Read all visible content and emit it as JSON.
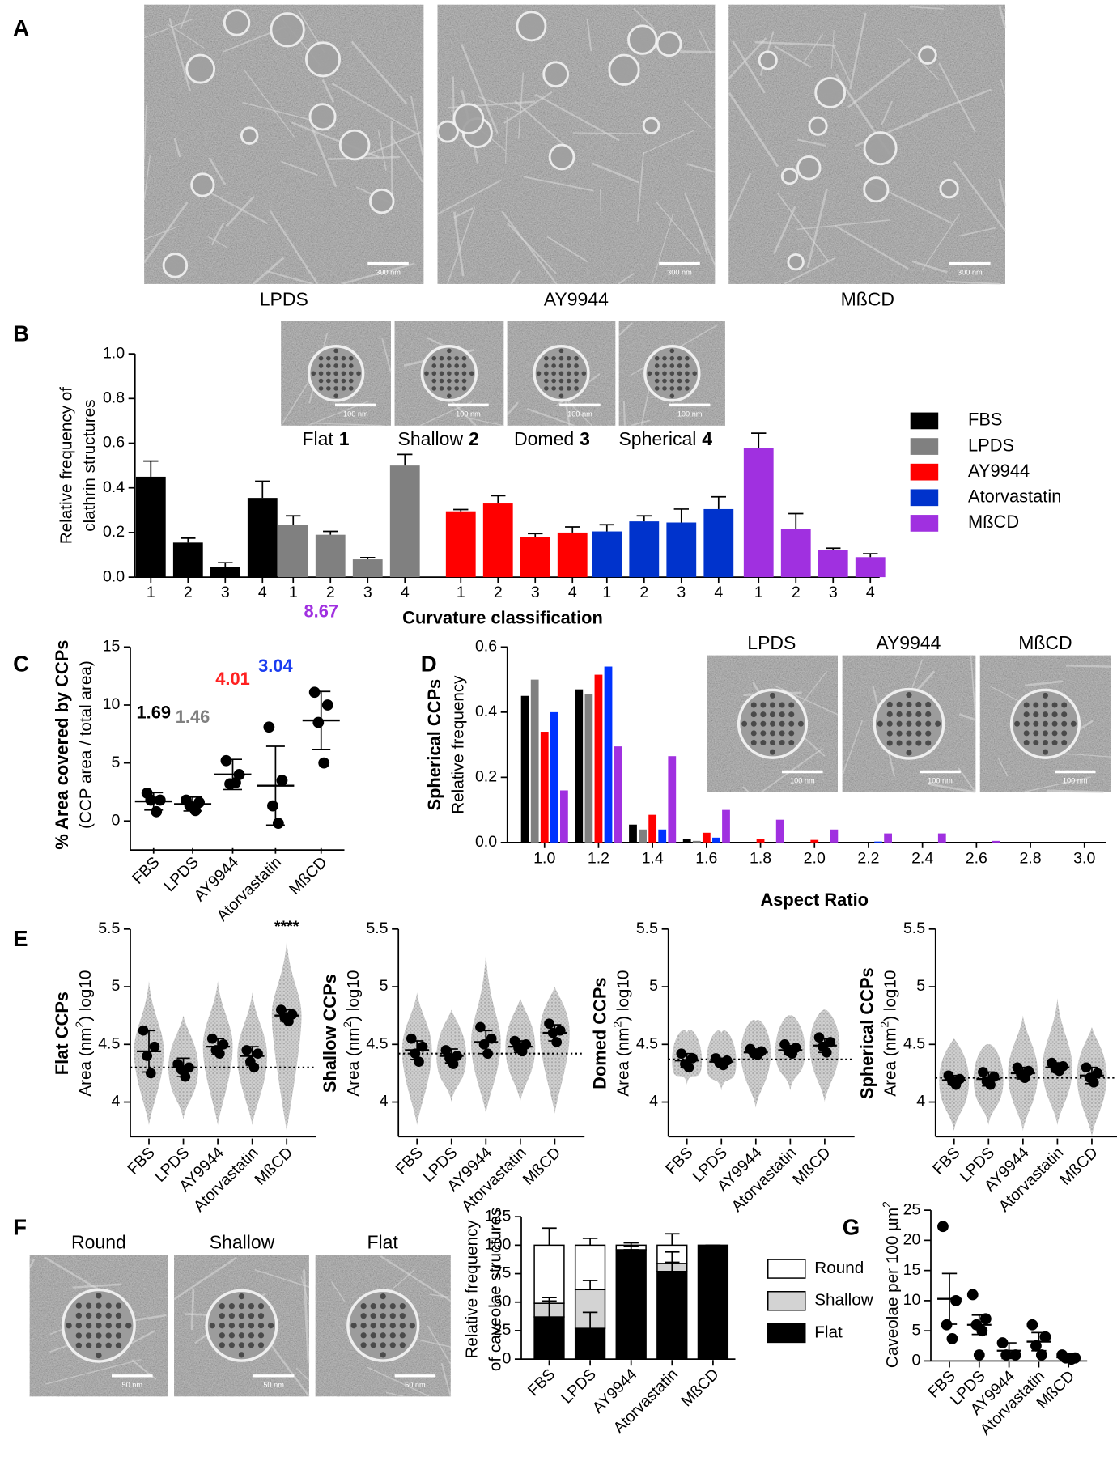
{
  "panel_labels": [
    "A",
    "B",
    "C",
    "D",
    "E",
    "F",
    "G"
  ],
  "panel_a_images": [
    {
      "label": "LPDS",
      "scale_bar": "300 nm"
    },
    {
      "label": "AY9944",
      "scale_bar": "300 nm"
    },
    {
      "label": "MßCD",
      "scale_bar": "300 nm"
    }
  ],
  "panel_b_insets": [
    {
      "label": "Flat",
      "number": "1",
      "scale_bar": "100 nm"
    },
    {
      "label": "Shallow",
      "number": "2",
      "scale_bar": "100 nm"
    },
    {
      "label": "Domed",
      "number": "3",
      "scale_bar": "100 nm"
    },
    {
      "label": "Spherical",
      "number": "4",
      "scale_bar": "100 nm"
    }
  ],
  "panel_d_insets": [
    {
      "label": "LPDS",
      "scale_bar": "100 nm"
    },
    {
      "label": "AY9944",
      "scale_bar": "100 nm"
    },
    {
      "label": "MßCD",
      "scale_bar": "100 nm"
    }
  ],
  "panel_f_insets": [
    {
      "label": "Round",
      "scale_bar": "50 nm"
    },
    {
      "label": "Shallow",
      "scale_bar": "50 nm"
    },
    {
      "label": "Flat",
      "scale_bar": "50 nm"
    }
  ],
  "chart_data": [
    {
      "type": "grouped_bar",
      "y_label_lines": [
        "Relative frequency of",
        "clathrin structures"
      ],
      "x_label": "Curvature classification",
      "categories": [
        "1",
        "2",
        "3",
        "4"
      ],
      "ylim": [
        0,
        1
      ],
      "yticks": [
        {
          "value": 0,
          "label": "0.0"
        },
        0.2,
        0.4,
        0.6,
        0.8,
        {
          "value": 1,
          "label": "1.0"
        }
      ],
      "legend": "right",
      "series": [
        {
          "name": "FBS",
          "color": "#000000",
          "values": [
            0.45,
            0.155,
            0.045,
            0.355
          ],
          "errors": [
            0.07,
            0.02,
            0.02,
            0.075
          ]
        },
        {
          "name": "LPDS",
          "color": "#808080",
          "values": [
            0.235,
            0.19,
            0.08,
            0.5
          ],
          "errors": [
            0.04,
            0.015,
            0.008,
            0.05
          ]
        },
        {
          "name": "AY9944",
          "color": "#ff0000",
          "values": [
            0.295,
            0.33,
            0.18,
            0.2
          ],
          "errors": [
            0.008,
            0.035,
            0.015,
            0.025
          ]
        },
        {
          "name": "Atorvastatin",
          "color": "#0033cc",
          "values": [
            0.205,
            0.25,
            0.245,
            0.305
          ],
          "errors": [
            0.03,
            0.025,
            0.06,
            0.055
          ]
        },
        {
          "name": "MßCD",
          "color": "#a030e0",
          "values": [
            0.58,
            0.215,
            0.12,
            0.09
          ],
          "errors": [
            0.065,
            0.07,
            0.01,
            0.015
          ]
        }
      ]
    },
    {
      "type": "dot",
      "y_title": "% Area covered by CCPs",
      "y_label_lines": [
        "(CCP area / total area)"
      ],
      "categories": [
        "FBS",
        "LPDS",
        "AY9944",
        "Atorvastatin",
        "MßCD"
      ],
      "ylim": [
        -2.5,
        15
      ],
      "yticks": [
        0,
        5,
        10,
        15
      ],
      "groups": [
        {
          "points": [
            2.4,
            1.8,
            1.8,
            0.8
          ],
          "mean": 1.69,
          "sd": 0.75,
          "mean_color": "#000000"
        },
        {
          "points": [
            1.8,
            1.6,
            1.3,
            0.9
          ],
          "mean": 1.46,
          "sd": 0.6,
          "mean_color": "#808080"
        },
        {
          "points": [
            5.2,
            4.0,
            3.2,
            3.3
          ],
          "mean": 4.01,
          "sd": 1.3,
          "mean_color": "#ff2020"
        },
        {
          "points": [
            8.1,
            3.5,
            1.3,
            -0.2
          ],
          "mean": 3.04,
          "sd": 3.4,
          "mean_color": "#1a3cf0"
        },
        {
          "points": [
            11.1,
            10.0,
            8.5,
            5.0
          ],
          "mean": 8.67,
          "sd": 2.5,
          "mean_color": "#a030e0"
        }
      ]
    },
    {
      "type": "grouped_bar",
      "y_title": "Spherical CCPs",
      "y_label_lines": [
        "Relative frequency"
      ],
      "x_label": "Aspect Ratio",
      "categories": [
        "1.0",
        "1.2",
        "1.4",
        "1.6",
        "1.8",
        "2.0",
        "2.2",
        "2.4",
        "2.6",
        "2.8",
        "3.0"
      ],
      "ylim": [
        0,
        0.6
      ],
      "yticks": [
        {
          "value": 0,
          "label": "0.0"
        },
        0.2,
        0.4,
        0.6
      ],
      "series": [
        {
          "color": "#000000",
          "values": [
            0.45,
            0.47,
            0.055,
            0.01,
            0,
            0,
            0,
            0,
            0,
            0,
            0
          ]
        },
        {
          "color": "#808080",
          "values": [
            0.5,
            0.455,
            0.04,
            0.005,
            0,
            0,
            0,
            0,
            0,
            0,
            0
          ]
        },
        {
          "color": "#ff0000",
          "values": [
            0.34,
            0.515,
            0.085,
            0.03,
            0.012,
            0.008,
            0,
            0,
            0,
            0,
            0
          ]
        },
        {
          "color": "#0033ff",
          "values": [
            0.4,
            0.54,
            0.04,
            0.015,
            0,
            0,
            0.003,
            0,
            0,
            0,
            0
          ]
        },
        {
          "color": "#a030e0",
          "values": [
            0.16,
            0.295,
            0.265,
            0.1,
            0.07,
            0.04,
            0.028,
            0.028,
            0.005,
            0,
            0
          ]
        }
      ]
    },
    {
      "type": "swarm",
      "y_title": "Flat CCPs",
      "y_label_parts": [
        "Area (nm",
        "2",
        ") log10"
      ],
      "categories": [
        "FBS",
        "LPDS",
        "AY9944",
        "Atorvastatin",
        "MßCD"
      ],
      "ylim": [
        3.7,
        5.5
      ],
      "yticks": [
        4,
        4.5,
        5,
        5.5
      ],
      "reference": 4.3,
      "annotations": [
        {
          "text": "****",
          "category": "MßCD"
        }
      ],
      "groups": [
        {
          "range": [
            3.8,
            5.05
          ],
          "replicates": [
            4.62,
            4.48,
            4.4,
            4.25
          ],
          "mean": 4.44,
          "sd": 0.18
        },
        {
          "range": [
            3.85,
            4.75
          ],
          "replicates": [
            4.33,
            4.3,
            4.28,
            4.22
          ],
          "mean": 4.3,
          "sd": 0.08
        },
        {
          "range": [
            3.8,
            5.05
          ],
          "replicates": [
            4.55,
            4.5,
            4.45,
            4.42
          ],
          "mean": 4.48,
          "sd": 0.07
        },
        {
          "range": [
            3.8,
            4.95
          ],
          "replicates": [
            4.45,
            4.42,
            4.35,
            4.3
          ],
          "mean": 4.4,
          "sd": 0.08
        },
        {
          "range": [
            3.75,
            5.4
          ],
          "replicates": [
            4.8,
            4.76,
            4.73,
            4.7
          ],
          "mean": 4.75,
          "sd": 0.05
        }
      ]
    },
    {
      "type": "swarm",
      "y_title": "Shallow CCPs",
      "y_label_parts": [
        "Area (nm",
        "2",
        ") log10"
      ],
      "categories": [
        "FBS",
        "LPDS",
        "AY9944",
        "Atorvastatin",
        "MßCD"
      ],
      "ylim": [
        3.7,
        5.5
      ],
      "yticks": [
        4,
        4.5,
        5,
        5.5
      ],
      "reference": 4.42,
      "groups": [
        {
          "range": [
            3.8,
            4.95
          ],
          "replicates": [
            4.55,
            4.48,
            4.42,
            4.35
          ],
          "mean": 4.45,
          "sd": 0.08
        },
        {
          "range": [
            4.0,
            4.8
          ],
          "replicates": [
            4.45,
            4.4,
            4.38,
            4.33
          ],
          "mean": 4.4,
          "sd": 0.06
        },
        {
          "range": [
            3.9,
            5.3
          ],
          "replicates": [
            4.65,
            4.55,
            4.5,
            4.42
          ],
          "mean": 4.52,
          "sd": 0.1
        },
        {
          "range": [
            4.0,
            4.9
          ],
          "replicates": [
            4.53,
            4.5,
            4.47,
            4.44
          ],
          "mean": 4.48,
          "sd": 0.05
        },
        {
          "range": [
            3.9,
            5.0
          ],
          "replicates": [
            4.68,
            4.62,
            4.6,
            4.52
          ],
          "mean": 4.6,
          "sd": 0.07
        }
      ]
    },
    {
      "type": "swarm",
      "y_title": "Domed CCPs",
      "y_label_parts": [
        "Area (nm",
        "2",
        ") log10"
      ],
      "categories": [
        "FBS",
        "LPDS",
        "AY9944",
        "Atorvastatin",
        "MßCD"
      ],
      "ylim": [
        3.7,
        5.5
      ],
      "yticks": [
        4,
        4.5,
        5,
        5.5
      ],
      "reference": 4.37,
      "groups": [
        {
          "range": [
            4.15,
            4.6
          ],
          "replicates": [
            4.42,
            4.38,
            4.33,
            4.3
          ],
          "mean": 4.36,
          "sd": 0.06
        },
        {
          "range": [
            4.1,
            4.6
          ],
          "replicates": [
            4.38,
            4.36,
            4.34,
            4.32
          ],
          "mean": 4.35,
          "sd": 0.03
        },
        {
          "range": [
            3.95,
            4.7
          ],
          "replicates": [
            4.46,
            4.44,
            4.42,
            4.41
          ],
          "mean": 4.43,
          "sd": 0.03
        },
        {
          "range": [
            4.1,
            4.75
          ],
          "replicates": [
            4.5,
            4.47,
            4.44,
            4.42
          ],
          "mean": 4.45,
          "sd": 0.04
        },
        {
          "range": [
            4.0,
            4.8
          ],
          "replicates": [
            4.56,
            4.52,
            4.48,
            4.43
          ],
          "mean": 4.49,
          "sd": 0.06
        }
      ]
    },
    {
      "type": "swarm",
      "y_title": "Spherical CCPs",
      "y_label_parts": [
        "Area (nm",
        "2",
        ") log10"
      ],
      "categories": [
        "FBS",
        "LPDS",
        "AY9944",
        "Atorvastatin",
        "MßCD"
      ],
      "ylim": [
        3.7,
        5.5
      ],
      "yticks": [
        4,
        4.5,
        5,
        5.5
      ],
      "reference": 4.21,
      "groups": [
        {
          "range": [
            3.75,
            4.55
          ],
          "replicates": [
            4.23,
            4.2,
            4.18,
            4.15
          ],
          "mean": 4.19,
          "sd": 0.04
        },
        {
          "range": [
            3.8,
            4.5
          ],
          "replicates": [
            4.26,
            4.22,
            4.18,
            4.15
          ],
          "mean": 4.2,
          "sd": 0.06
        },
        {
          "range": [
            3.75,
            4.75
          ],
          "replicates": [
            4.3,
            4.27,
            4.24,
            4.21
          ],
          "mean": 4.25,
          "sd": 0.05
        },
        {
          "range": [
            3.8,
            4.9
          ],
          "replicates": [
            4.34,
            4.31,
            4.29,
            4.27
          ],
          "mean": 4.3,
          "sd": 0.04
        },
        {
          "range": [
            3.7,
            4.65
          ],
          "replicates": [
            4.3,
            4.25,
            4.21,
            4.17
          ],
          "mean": 4.23,
          "sd": 0.07
        }
      ]
    },
    {
      "type": "stacked_bar",
      "y_label_lines": [
        "Relative frequency",
        "of caveolae structures"
      ],
      "categories": [
        "FBS",
        "LPDS",
        "AY9944",
        "Atorvastatin",
        "MßCD"
      ],
      "ylim": [
        0,
        125
      ],
      "yticks": [
        0,
        25,
        50,
        75,
        100,
        125
      ],
      "legend": "right",
      "series": [
        {
          "name": "Flat",
          "color": "#000000",
          "values": [
            37,
            27,
            96,
            77,
            100
          ],
          "errors": [
            14,
            14,
            3,
            8,
            0
          ]
        },
        {
          "name": "Shallow",
          "color": "#d3d3d3",
          "values": [
            12,
            34,
            0,
            7,
            0
          ],
          "errors": [
            5,
            8,
            0,
            10,
            0
          ]
        },
        {
          "name": "Round",
          "color": "#ffffff",
          "values": [
            51,
            39,
            4,
            16,
            0
          ],
          "errors": [
            15,
            6,
            2,
            10,
            0
          ]
        }
      ]
    },
    {
      "type": "dot",
      "y_label_parts": [
        "Caveolae per 100 µm",
        "2"
      ],
      "categories": [
        "FBS",
        "LPDS",
        "AY9944",
        "Atorvastatin",
        "MßCD"
      ],
      "ylim": [
        0,
        25
      ],
      "yticks": [
        0,
        5,
        10,
        15,
        20,
        25
      ],
      "groups": [
        {
          "points": [
            22.3,
            10,
            6,
            3.7
          ],
          "mean": 10.3,
          "sem": 4.2
        },
        {
          "points": [
            11,
            7,
            6,
            5,
            1
          ],
          "mean": 6,
          "sem": 1.6
        },
        {
          "points": [
            3,
            1,
            1
          ],
          "mean": 1.7,
          "sem": 1.3
        },
        {
          "points": [
            6,
            4,
            2.5,
            1
          ],
          "mean": 3.2,
          "sem": 1.5
        },
        {
          "points": [
            1,
            0.5,
            0.5,
            0.3
          ],
          "mean": 0.6,
          "sem": 0.6
        }
      ]
    }
  ]
}
